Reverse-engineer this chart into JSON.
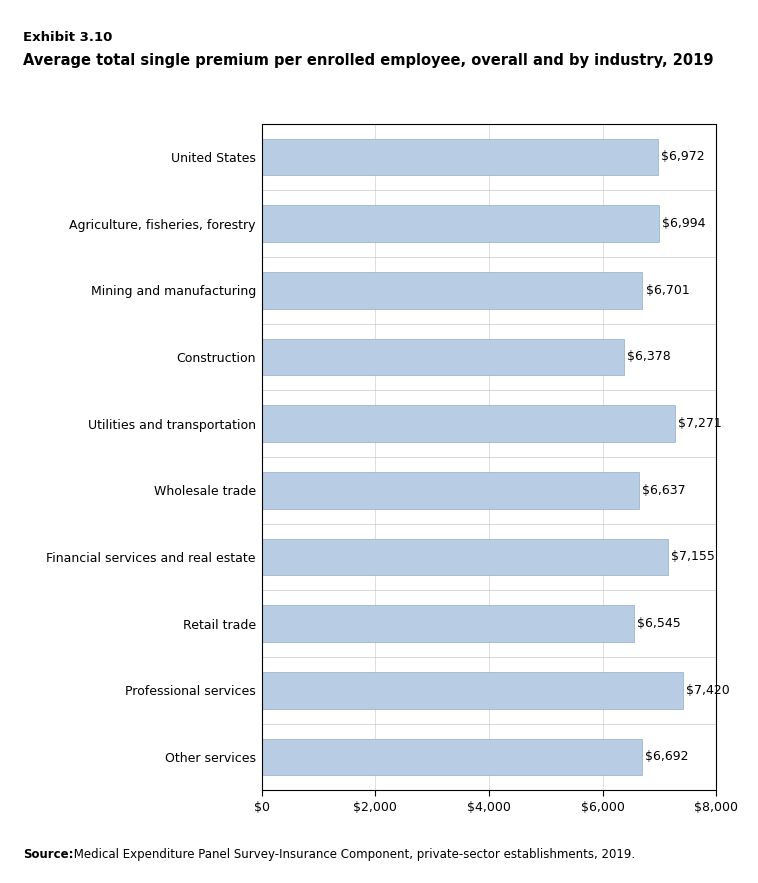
{
  "exhibit_label": "Exhibit 3.10",
  "title": "Average total single premium per enrolled employee, overall and by industry, 2019",
  "categories": [
    "Other services",
    "Professional services",
    "Retail trade",
    "Financial services and real estate",
    "Wholesale trade",
    "Utilities and transportation",
    "Construction",
    "Mining and manufacturing",
    "Agriculture, fisheries, forestry",
    "United States"
  ],
  "values": [
    6692,
    7420,
    6545,
    7155,
    6637,
    7271,
    6378,
    6701,
    6994,
    6972
  ],
  "bar_color": "#b8cce4",
  "bar_edge_color": "#8faec8",
  "xlim": [
    0,
    8000
  ],
  "xticks": [
    0,
    2000,
    4000,
    6000,
    8000
  ],
  "xtick_labels": [
    "$0",
    "$2,000",
    "$4,000",
    "$6,000",
    "$8,000"
  ],
  "source_bold": "Source:",
  "source_rest": " Medical Expenditure Panel Survey-Insurance Component, private-sector establishments, 2019.",
  "background_color": "#ffffff",
  "label_fontsize": 9.0,
  "tick_fontsize": 9.0,
  "title_fontsize": 10.5,
  "exhibit_fontsize": 9.5,
  "source_fontsize": 8.5,
  "bar_label_fontsize": 9.0
}
